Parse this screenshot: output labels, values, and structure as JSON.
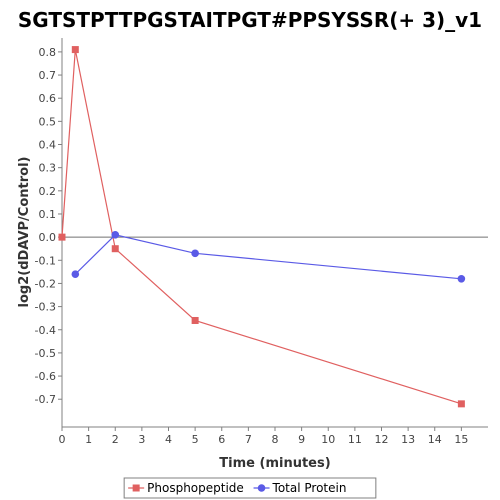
{
  "chart_data": {
    "type": "line",
    "title": "SGTSTPTTPGSTAITPGT#PPSYSSR(+ 3)_v1",
    "xlabel": "Time (minutes)",
    "ylabel": "log2(dDAVP/Control)",
    "xlim": [
      0,
      16
    ],
    "ylim": [
      -0.82,
      0.86
    ],
    "x_ticks": [
      0,
      1,
      2,
      3,
      4,
      5,
      6,
      7,
      8,
      9,
      10,
      11,
      12,
      13,
      14,
      15
    ],
    "y_ticks": [
      -0.7,
      -0.6,
      -0.5,
      -0.4,
      -0.3,
      -0.2,
      -0.1,
      0.0,
      0.1,
      0.2,
      0.3,
      0.4,
      0.5,
      0.6,
      0.7,
      0.8
    ],
    "zero_line": true,
    "legend_position": "bottom",
    "series": [
      {
        "name": "Phosphopeptide",
        "color": "#e06060",
        "marker": "square",
        "x": [
          0,
          0.5,
          2,
          5,
          15
        ],
        "y": [
          0.0,
          0.81,
          -0.05,
          -0.36,
          -0.72
        ]
      },
      {
        "name": "Total Protein",
        "color": "#5a5ae6",
        "marker": "circle",
        "x": [
          0.5,
          2,
          5,
          15
        ],
        "y": [
          -0.16,
          0.01,
          -0.07,
          -0.18
        ]
      }
    ]
  }
}
